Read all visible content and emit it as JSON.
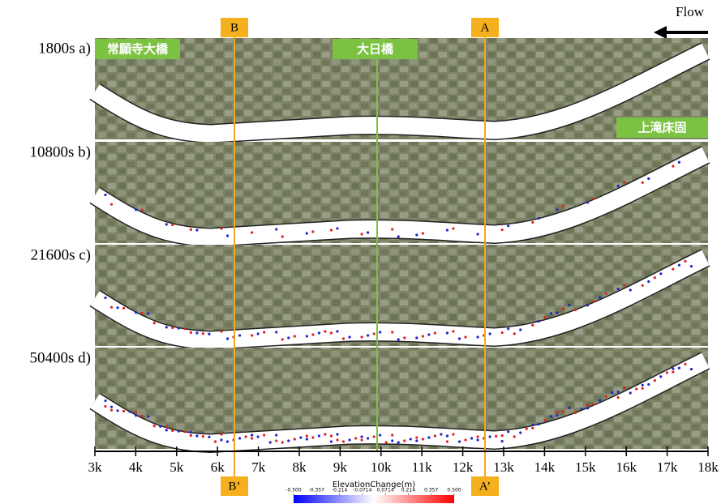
{
  "flow": "Flow",
  "panels": [
    {
      "label": "1800s a)"
    },
    {
      "label": "10800s b)"
    },
    {
      "label": "21600s c)"
    },
    {
      "label": "50400s d)"
    }
  ],
  "places": [
    "常願寺大橋",
    "大日橋",
    "上滝床固"
  ],
  "sections": [
    {
      "top": "B",
      "bottom": "B’"
    },
    {
      "top": "A",
      "bottom": "A’"
    }
  ],
  "axis": {
    "range": [
      3,
      18
    ],
    "ticks": [
      {
        "value": 3,
        "label": "3k"
      },
      {
        "value": 4,
        "label": "4k"
      },
      {
        "value": 5,
        "label": "5k"
      },
      {
        "value": 6,
        "label": "6k"
      },
      {
        "value": 7,
        "label": "7k"
      },
      {
        "value": 8,
        "label": "8k"
      },
      {
        "value": 9,
        "label": "9k"
      },
      {
        "value": 10,
        "label": "10k"
      },
      {
        "value": 11,
        "label": "11k"
      },
      {
        "value": 12,
        "label": "12k"
      },
      {
        "value": 13,
        "label": "13k"
      },
      {
        "value": 14,
        "label": "14k"
      },
      {
        "value": 15,
        "label": "15k"
      },
      {
        "value": 16,
        "label": "16k"
      },
      {
        "value": 17,
        "label": "17k"
      },
      {
        "value": 18,
        "label": "18k"
      }
    ]
  },
  "colorbar": {
    "title": "ElevationChange(m)",
    "range": [
      -0.5,
      0.5
    ],
    "ticks": [
      {
        "value": -0.5,
        "label": "-0.500"
      },
      {
        "value": -0.357,
        "label": "-0.357"
      },
      {
        "value": -0.214,
        "label": "-0.214"
      },
      {
        "value": -0.0714,
        "label": "-0.0714"
      },
      {
        "value": 0.0714,
        "label": "0.0714"
      },
      {
        "value": 0.214,
        "label": "0.214"
      },
      {
        "value": 0.357,
        "label": "0.357"
      },
      {
        "value": 0.5,
        "label": "0.500"
      }
    ]
  }
}
